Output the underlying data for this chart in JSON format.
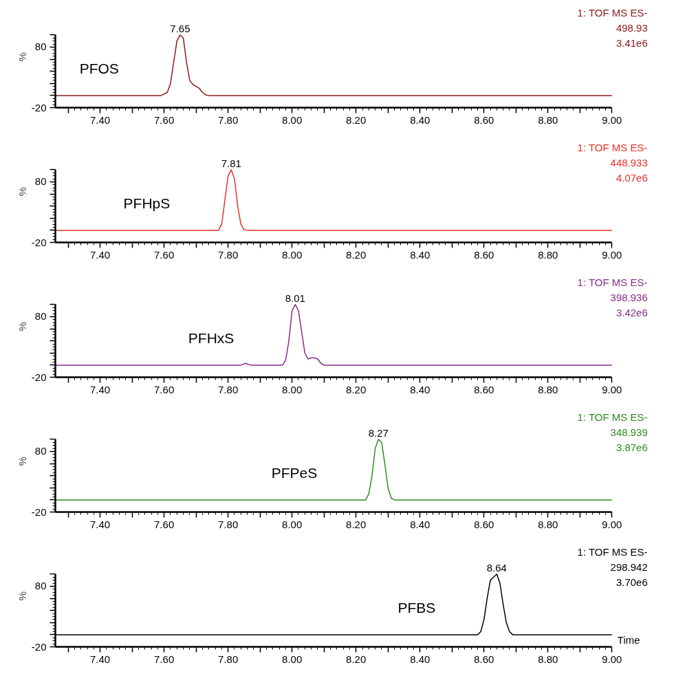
{
  "chart_data": [
    {
      "type": "line",
      "ylabel": "%",
      "xlim": [
        7.26,
        9.0
      ],
      "ylim": [
        -20,
        100
      ],
      "xticks": [
        {
          "value": 7.3,
          "label": null
        },
        {
          "value": 7.4,
          "label": "7.40"
        },
        {
          "value": 7.5,
          "label": null
        },
        {
          "value": 7.6,
          "label": "7.60"
        },
        {
          "value": 7.7,
          "label": null
        },
        {
          "value": 7.8,
          "label": "7.80"
        },
        {
          "value": 7.9,
          "label": null
        },
        {
          "value": 8.0,
          "label": "8.00"
        },
        {
          "value": 8.1,
          "label": null
        },
        {
          "value": 8.2,
          "label": "8.20"
        },
        {
          "value": 8.3,
          "label": null
        },
        {
          "value": 8.4,
          "label": "8.40"
        },
        {
          "value": 8.5,
          "label": null
        },
        {
          "value": 8.6,
          "label": "8.60"
        },
        {
          "value": 8.7,
          "label": null
        },
        {
          "value": 8.8,
          "label": "8.80"
        },
        {
          "value": 8.9,
          "label": null
        },
        {
          "value": 9.0,
          "label": "9.00"
        }
      ],
      "yticks": [
        {
          "value": -20,
          "label": "-20"
        },
        {
          "value": 0,
          "label": null
        },
        {
          "value": 20,
          "label": null
        },
        {
          "value": 40,
          "label": null
        },
        {
          "value": 60,
          "label": null
        },
        {
          "value": 80,
          "label": "80"
        },
        {
          "value": 100,
          "label": null
        }
      ],
      "x": [
        7.26,
        7.59,
        7.61,
        7.62,
        7.63,
        7.64,
        7.65,
        7.66,
        7.67,
        7.68,
        7.69,
        7.7,
        7.71,
        7.72,
        7.73,
        7.74,
        9.0
      ],
      "series": [
        {
          "name": "PFOS",
          "color": "#8b1a1a",
          "values": [
            0,
            0,
            5,
            20,
            55,
            90,
            100,
            95,
            55,
            25,
            18,
            15,
            12,
            5,
            1,
            0,
            0
          ]
        }
      ],
      "annotations": [
        "1: TOF MS ES-",
        "498.93",
        "3.41e6",
        {
          "text": "7.65",
          "x": 7.65,
          "y": 100
        }
      ]
    },
    {
      "type": "line",
      "ylabel": "%",
      "xlim": [
        7.26,
        9.0
      ],
      "ylim": [
        -20,
        100
      ],
      "xticks": [
        {
          "value": 7.3,
          "label": null
        },
        {
          "value": 7.4,
          "label": "7.40"
        },
        {
          "value": 7.5,
          "label": null
        },
        {
          "value": 7.6,
          "label": "7.60"
        },
        {
          "value": 7.7,
          "label": null
        },
        {
          "value": 7.8,
          "label": "7.80"
        },
        {
          "value": 7.9,
          "label": null
        },
        {
          "value": 8.0,
          "label": "8.00"
        },
        {
          "value": 8.1,
          "label": null
        },
        {
          "value": 8.2,
          "label": "8.20"
        },
        {
          "value": 8.3,
          "label": null
        },
        {
          "value": 8.4,
          "label": "8.40"
        },
        {
          "value": 8.5,
          "label": null
        },
        {
          "value": 8.6,
          "label": "8.60"
        },
        {
          "value": 8.7,
          "label": null
        },
        {
          "value": 8.8,
          "label": "8.80"
        },
        {
          "value": 8.9,
          "label": null
        },
        {
          "value": 9.0,
          "label": "9.00"
        }
      ],
      "yticks": [
        {
          "value": -20,
          "label": "-20"
        },
        {
          "value": 0,
          "label": null
        },
        {
          "value": 20,
          "label": null
        },
        {
          "value": 40,
          "label": null
        },
        {
          "value": 60,
          "label": null
        },
        {
          "value": 80,
          "label": "80"
        },
        {
          "value": 100,
          "label": null
        }
      ],
      "x": [
        7.26,
        7.77,
        7.78,
        7.79,
        7.8,
        7.81,
        7.82,
        7.83,
        7.84,
        7.85,
        7.86,
        9.0
      ],
      "series": [
        {
          "name": "PFHpS",
          "color": "#e8312a",
          "values": [
            0,
            0,
            10,
            50,
            90,
            100,
            85,
            40,
            10,
            1,
            0,
            0
          ]
        }
      ],
      "annotations": [
        "1: TOF MS ES-",
        "448.933",
        "4.07e6",
        {
          "text": "7.81",
          "x": 7.81,
          "y": 100
        }
      ]
    },
    {
      "type": "line",
      "ylabel": "%",
      "xlim": [
        7.26,
        9.0
      ],
      "ylim": [
        -20,
        100
      ],
      "xticks": [
        {
          "value": 7.3,
          "label": null
        },
        {
          "value": 7.4,
          "label": "7.40"
        },
        {
          "value": 7.5,
          "label": null
        },
        {
          "value": 7.6,
          "label": "7.60"
        },
        {
          "value": 7.7,
          "label": null
        },
        {
          "value": 7.8,
          "label": "7.80"
        },
        {
          "value": 7.9,
          "label": null
        },
        {
          "value": 8.0,
          "label": "8.00"
        },
        {
          "value": 8.1,
          "label": null
        },
        {
          "value": 8.2,
          "label": "8.20"
        },
        {
          "value": 8.3,
          "label": null
        },
        {
          "value": 8.4,
          "label": "8.40"
        },
        {
          "value": 8.5,
          "label": null
        },
        {
          "value": 8.6,
          "label": "8.60"
        },
        {
          "value": 8.7,
          "label": null
        },
        {
          "value": 8.8,
          "label": "8.80"
        },
        {
          "value": 8.9,
          "label": null
        },
        {
          "value": 9.0,
          "label": "9.00"
        }
      ],
      "yticks": [
        {
          "value": -20,
          "label": "-20"
        },
        {
          "value": 0,
          "label": null
        },
        {
          "value": 20,
          "label": null
        },
        {
          "value": 40,
          "label": null
        },
        {
          "value": 60,
          "label": null
        },
        {
          "value": 80,
          "label": "80"
        },
        {
          "value": 100,
          "label": null
        }
      ],
      "x": [
        7.26,
        7.84,
        7.855,
        7.87,
        7.97,
        7.98,
        7.99,
        8.0,
        8.01,
        8.02,
        8.03,
        8.04,
        8.05,
        8.06,
        8.07,
        8.08,
        8.09,
        8.1,
        9.0
      ],
      "series": [
        {
          "name": "PFHxS",
          "color": "#8b2a8b",
          "values": [
            0,
            0,
            3,
            0,
            0,
            8,
            40,
            90,
            100,
            90,
            55,
            20,
            10,
            12,
            12,
            10,
            3,
            0,
            0
          ]
        }
      ],
      "annotations": [
        "1: TOF MS ES-",
        "398.936",
        "3.42e6",
        {
          "text": "8.01",
          "x": 8.01,
          "y": 100
        }
      ]
    },
    {
      "type": "line",
      "ylabel": "%",
      "xlim": [
        7.26,
        9.0
      ],
      "ylim": [
        -20,
        100
      ],
      "xticks": [
        {
          "value": 7.3,
          "label": null
        },
        {
          "value": 7.4,
          "label": "7.40"
        },
        {
          "value": 7.5,
          "label": null
        },
        {
          "value": 7.6,
          "label": "7.60"
        },
        {
          "value": 7.7,
          "label": null
        },
        {
          "value": 7.8,
          "label": "7.80"
        },
        {
          "value": 7.9,
          "label": null
        },
        {
          "value": 8.0,
          "label": "8.00"
        },
        {
          "value": 8.1,
          "label": null
        },
        {
          "value": 8.2,
          "label": "8.20"
        },
        {
          "value": 8.3,
          "label": null
        },
        {
          "value": 8.4,
          "label": "8.40"
        },
        {
          "value": 8.5,
          "label": null
        },
        {
          "value": 8.6,
          "label": "8.60"
        },
        {
          "value": 8.7,
          "label": null
        },
        {
          "value": 8.8,
          "label": "8.80"
        },
        {
          "value": 8.9,
          "label": null
        },
        {
          "value": 9.0,
          "label": "9.00"
        }
      ],
      "yticks": [
        {
          "value": -20,
          "label": "-20"
        },
        {
          "value": 0,
          "label": null
        },
        {
          "value": 20,
          "label": null
        },
        {
          "value": 40,
          "label": null
        },
        {
          "value": 60,
          "label": null
        },
        {
          "value": 80,
          "label": "80"
        },
        {
          "value": 100,
          "label": null
        }
      ],
      "x": [
        7.26,
        8.23,
        8.24,
        8.25,
        8.26,
        8.27,
        8.28,
        8.29,
        8.3,
        8.31,
        8.32,
        9.0
      ],
      "series": [
        {
          "name": "PFPeS",
          "color": "#2e8b1e",
          "values": [
            0,
            0,
            10,
            40,
            85,
            100,
            95,
            60,
            20,
            3,
            0,
            0
          ]
        }
      ],
      "annotations": [
        "1: TOF MS ES-",
        "348.939",
        "3.87e6",
        {
          "text": "8.27",
          "x": 8.27,
          "y": 100
        }
      ]
    },
    {
      "type": "line",
      "ylabel": "%",
      "xlabel": "Time",
      "xlim": [
        7.26,
        9.0
      ],
      "ylim": [
        -20,
        100
      ],
      "xticks": [
        {
          "value": 7.3,
          "label": null
        },
        {
          "value": 7.4,
          "label": "7.40"
        },
        {
          "value": 7.5,
          "label": null
        },
        {
          "value": 7.6,
          "label": "7.60"
        },
        {
          "value": 7.7,
          "label": null
        },
        {
          "value": 7.8,
          "label": "7.80"
        },
        {
          "value": 7.9,
          "label": null
        },
        {
          "value": 8.0,
          "label": "8.00"
        },
        {
          "value": 8.1,
          "label": null
        },
        {
          "value": 8.2,
          "label": "8.20"
        },
        {
          "value": 8.3,
          "label": null
        },
        {
          "value": 8.4,
          "label": "8.40"
        },
        {
          "value": 8.5,
          "label": null
        },
        {
          "value": 8.6,
          "label": "8.60"
        },
        {
          "value": 8.7,
          "label": null
        },
        {
          "value": 8.8,
          "label": "8.80"
        },
        {
          "value": 8.9,
          "label": null
        },
        {
          "value": 9.0,
          "label": "9.00"
        }
      ],
      "yticks": [
        {
          "value": -20,
          "label": "-20"
        },
        {
          "value": 0,
          "label": null
        },
        {
          "value": 20,
          "label": null
        },
        {
          "value": 40,
          "label": null
        },
        {
          "value": 60,
          "label": null
        },
        {
          "value": 80,
          "label": "80"
        },
        {
          "value": 100,
          "label": null
        }
      ],
      "x": [
        7.26,
        8.58,
        8.59,
        8.6,
        8.61,
        8.62,
        8.63,
        8.64,
        8.65,
        8.66,
        8.67,
        8.68,
        8.69,
        9.0
      ],
      "series": [
        {
          "name": "PFBS",
          "color": "#000000",
          "values": [
            0,
            0,
            5,
            25,
            60,
            90,
            95,
            100,
            85,
            50,
            20,
            5,
            0,
            0
          ]
        }
      ],
      "annotations": [
        "1: TOF MS ES-",
        "298.942",
        "3.70e6",
        {
          "text": "8.64",
          "x": 8.64,
          "y": 100
        }
      ]
    }
  ]
}
